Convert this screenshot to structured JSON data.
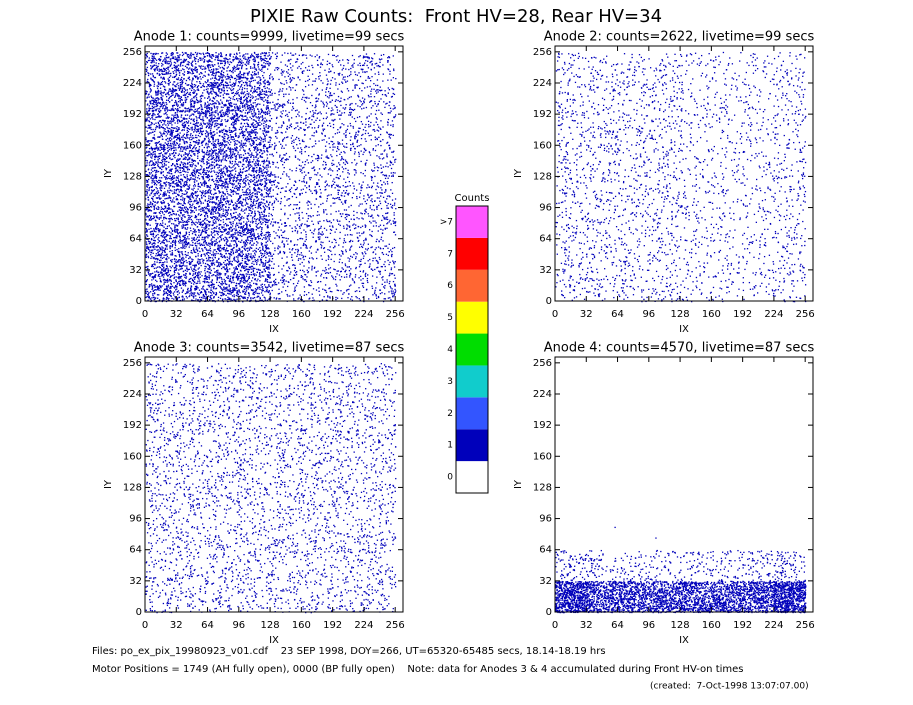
{
  "title": "PIXIE Raw Counts:  Front HV=28, Rear HV=34",
  "chart_data": [
    {
      "type": "density",
      "title": "Anode 1: counts=9999, livetime=99 secs",
      "xlabel": "IX",
      "ylabel": "IY",
      "xlim": [
        0,
        264
      ],
      "ylim": [
        0,
        262
      ],
      "xticks": [
        0,
        32,
        64,
        96,
        128,
        160,
        192,
        224,
        256
      ],
      "yticks": [
        0,
        32,
        64,
        96,
        128,
        160,
        192,
        224,
        256
      ],
      "density": [
        [
          250,
          240,
          260,
          230,
          80,
          75,
          70,
          80
        ],
        [
          240,
          230,
          250,
          235,
          75,
          70,
          75,
          80
        ],
        [
          230,
          235,
          245,
          240,
          70,
          75,
          70,
          75
        ],
        [
          240,
          250,
          255,
          245,
          75,
          70,
          75,
          80
        ],
        [
          250,
          245,
          260,
          240,
          70,
          75,
          70,
          75
        ],
        [
          245,
          240,
          265,
          235,
          75,
          70,
          75,
          70
        ],
        [
          250,
          245,
          260,
          240,
          70,
          75,
          70,
          75
        ],
        [
          230,
          220,
          240,
          220,
          70,
          65,
          70,
          70
        ]
      ]
    },
    {
      "type": "density",
      "title": "Anode 2: counts=2622, livetime=99 secs",
      "xlabel": "IX",
      "ylabel": "IY",
      "xlim": [
        0,
        264
      ],
      "ylim": [
        0,
        262
      ],
      "xticks": [
        0,
        32,
        64,
        96,
        128,
        160,
        192,
        224,
        256
      ],
      "yticks": [
        0,
        32,
        64,
        96,
        128,
        160,
        192,
        224,
        256
      ],
      "density": [
        [
          50,
          48,
          45,
          50,
          35,
          32,
          34,
          45
        ],
        [
          48,
          46,
          44,
          48,
          34,
          30,
          32,
          42
        ],
        [
          47,
          45,
          44,
          47,
          33,
          31,
          33,
          42
        ],
        [
          50,
          48,
          46,
          50,
          35,
          32,
          34,
          45
        ],
        [
          48,
          52,
          46,
          48,
          34,
          31,
          32,
          43
        ],
        [
          47,
          55,
          50,
          47,
          33,
          30,
          33,
          42
        ],
        [
          50,
          48,
          46,
          50,
          35,
          32,
          34,
          45
        ],
        [
          46,
          44,
          42,
          46,
          32,
          30,
          32,
          40
        ]
      ]
    },
    {
      "type": "density",
      "title": "Anode 3: counts=3542, livetime=87 secs",
      "xlabel": "IX",
      "ylabel": "IY",
      "xlim": [
        0,
        264
      ],
      "ylim": [
        0,
        262
      ],
      "xticks": [
        0,
        32,
        64,
        96,
        128,
        160,
        192,
        224,
        256
      ],
      "yticks": [
        0,
        32,
        64,
        96,
        128,
        160,
        192,
        224,
        256
      ],
      "density": [
        [
          58,
          55,
          56,
          55,
          54,
          55,
          56,
          58
        ],
        [
          56,
          55,
          54,
          55,
          56,
          54,
          55,
          57
        ],
        [
          55,
          54,
          55,
          56,
          55,
          54,
          55,
          56
        ],
        [
          56,
          55,
          56,
          55,
          54,
          55,
          54,
          56
        ],
        [
          55,
          56,
          55,
          54,
          55,
          56,
          55,
          55
        ],
        [
          56,
          55,
          54,
          55,
          56,
          55,
          54,
          56
        ],
        [
          57,
          56,
          55,
          56,
          55,
          54,
          55,
          57
        ],
        [
          55,
          54,
          55,
          54,
          55,
          55,
          54,
          55
        ]
      ]
    },
    {
      "type": "density",
      "title": "Anode 4: counts=4570, livetime=87 secs",
      "xlabel": "IX",
      "ylabel": "IY",
      "xlim": [
        0,
        264
      ],
      "ylim": [
        0,
        262
      ],
      "xticks": [
        0,
        32,
        64,
        96,
        128,
        160,
        192,
        224,
        256
      ],
      "yticks": [
        0,
        32,
        64,
        96,
        128,
        160,
        192,
        224,
        256
      ],
      "density": [
        [
          700,
          480,
          470,
          460,
          470,
          480,
          500,
          720
        ],
        [
          80,
          60,
          55,
          50,
          55,
          60,
          65,
          85
        ],
        [
          0,
          1,
          0,
          1,
          0,
          0,
          0,
          0
        ],
        [
          0,
          0,
          0,
          0,
          0,
          0,
          0,
          0
        ],
        [
          0,
          0,
          0,
          0,
          0,
          0,
          0,
          0
        ],
        [
          0,
          0,
          0,
          0,
          0,
          0,
          0,
          0
        ],
        [
          0,
          0,
          0,
          0,
          0,
          0,
          0,
          0
        ],
        [
          0,
          0,
          0,
          0,
          0,
          0,
          0,
          0
        ]
      ]
    }
  ],
  "colorbar": {
    "title": "Counts",
    "levels": [
      {
        "label": "0",
        "color": "#ffffff"
      },
      {
        "label": "1",
        "color": "#0000bb"
      },
      {
        "label": "2",
        "color": "#3355ff"
      },
      {
        "label": "3",
        "color": "#11cccc"
      },
      {
        "label": "4",
        "color": "#00dd00"
      },
      {
        "label": "5",
        "color": "#ffff00"
      },
      {
        "label": "6",
        "color": "#ff6633"
      },
      {
        "label": "7",
        "color": "#ff0000"
      },
      {
        "label": ">7",
        "color": "#ff55ff"
      }
    ]
  },
  "footer": [
    "Files: po_ex_pix_19980923_v01.cdf    23 SEP 1998, DOY=266, UT=65320-65485 secs, 18.14-18.19 hrs",
    "Motor Positions = 1749 (AH fully open), 0000 (BP fully open)    Note: data for Anodes 3 & 4 accumulated during Front HV-on times",
    "(created:  7-Oct-1998 13:07:07.00)"
  ]
}
